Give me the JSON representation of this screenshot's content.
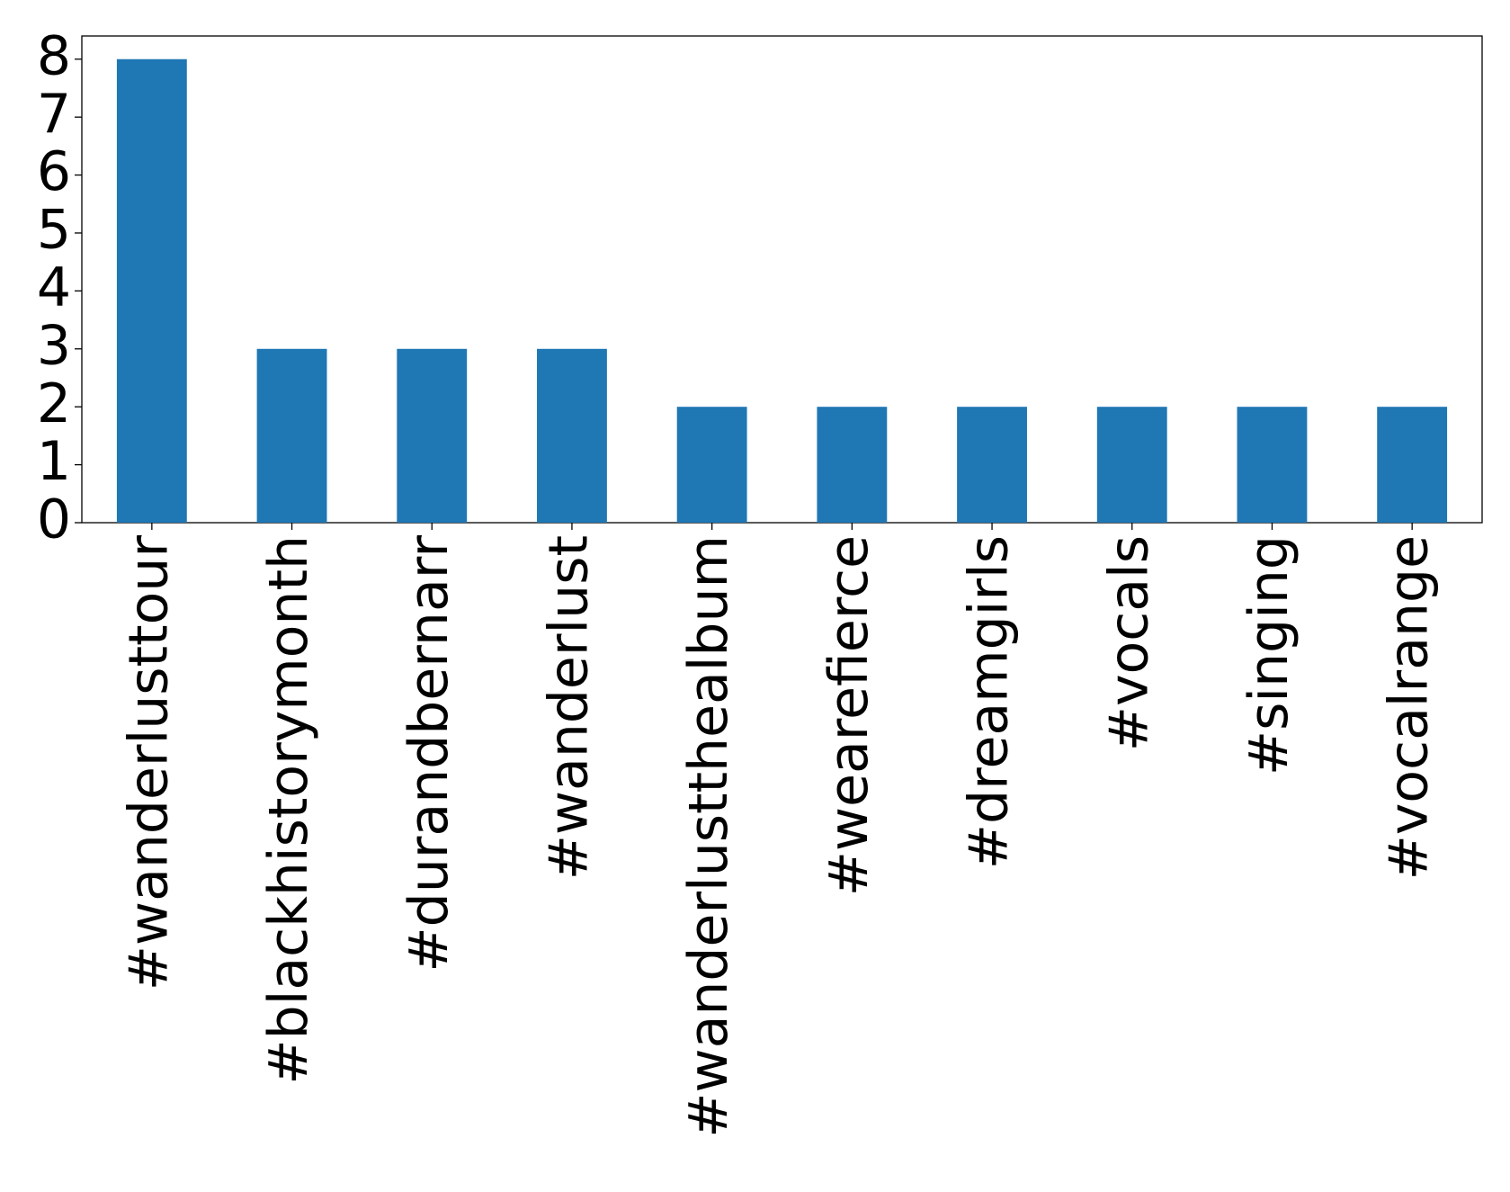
{
  "chart_data": {
    "type": "bar",
    "categories": [
      "#wanderlusttour",
      "#blackhistorymonth",
      "#durandbernarr",
      "#wanderlust",
      "#wanderlustthealbum",
      "#wearefierce",
      "#dreamgirls",
      "#vocals",
      "#singing",
      "#vocalrange"
    ],
    "values": [
      8,
      3,
      3,
      3,
      2,
      2,
      2,
      2,
      2,
      2
    ],
    "color": "#1f77b4",
    "ylim": [
      0,
      8.4
    ],
    "yticks": [
      0,
      1,
      2,
      3,
      4,
      5,
      6,
      7,
      8
    ],
    "grid": false
  }
}
